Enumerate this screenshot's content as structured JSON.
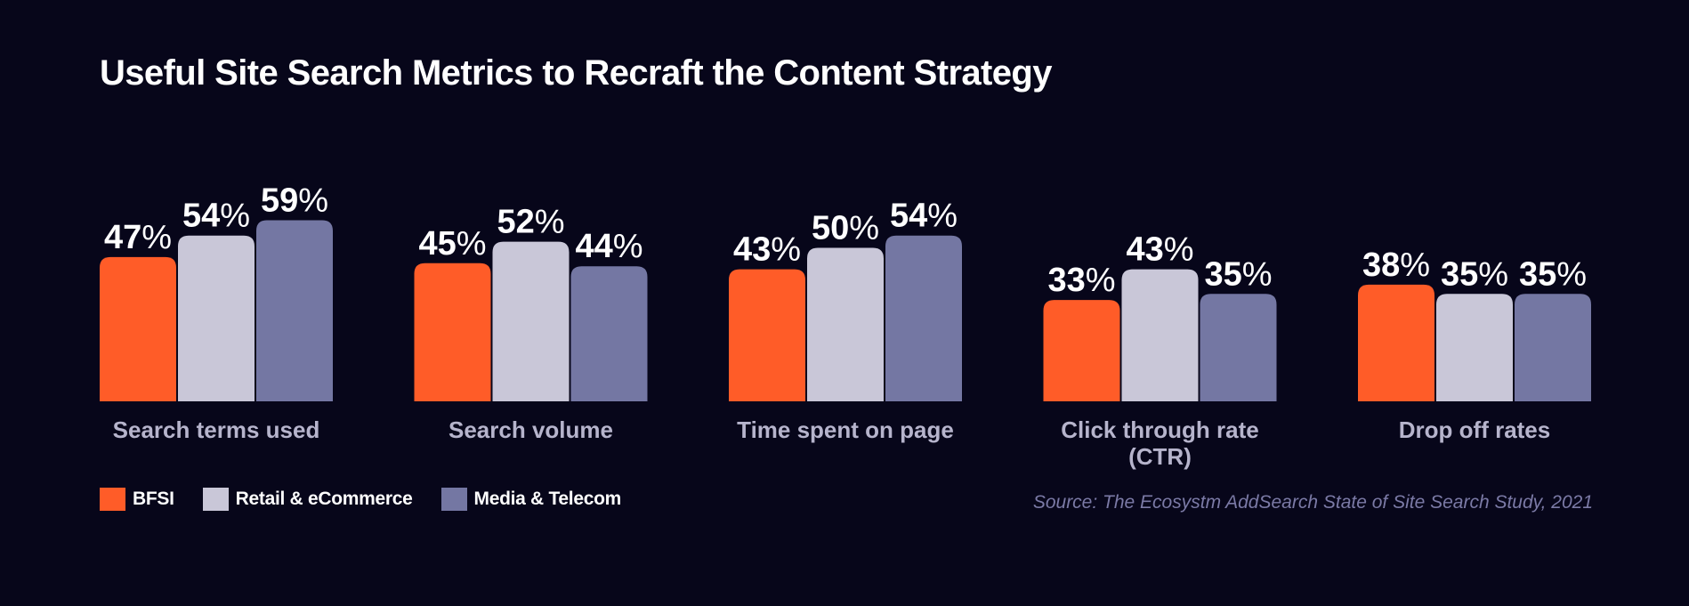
{
  "title": "Useful Site Search Metrics to Recraft the Content Strategy",
  "source": "Source: The Ecosystm AddSearch State of Site Search Study, 2021",
  "colors": {
    "background": "#07061a",
    "bfsi": "#ff5c28",
    "retail": "#c9c7d8",
    "media": "#7477a3",
    "source_text": "#7b7aa6"
  },
  "chart_data": {
    "type": "bar",
    "title": "Useful Site Search Metrics to Recraft the Content Strategy",
    "categories": [
      [
        "Search terms used"
      ],
      [
        "Search volume"
      ],
      [
        "Time spent on page"
      ],
      [
        "Click through rate",
        "(CTR)"
      ],
      [
        "Drop off rates"
      ]
    ],
    "series": [
      {
        "name": "BFSI",
        "color": "#ff5c28",
        "values": [
          47,
          45,
          43,
          33,
          38
        ]
      },
      {
        "name": "Retail & eCommerce",
        "color": "#c9c7d8",
        "values": [
          54,
          52,
          50,
          43,
          35
        ]
      },
      {
        "name": "Media & Telecom",
        "color": "#7477a3",
        "values": [
          59,
          44,
          54,
          35,
          35
        ]
      }
    ],
    "value_suffix": "%",
    "xlabel": "",
    "ylabel": "",
    "ylim": [
      0,
      100
    ],
    "grid": false,
    "legend_position": "bottom-left"
  }
}
